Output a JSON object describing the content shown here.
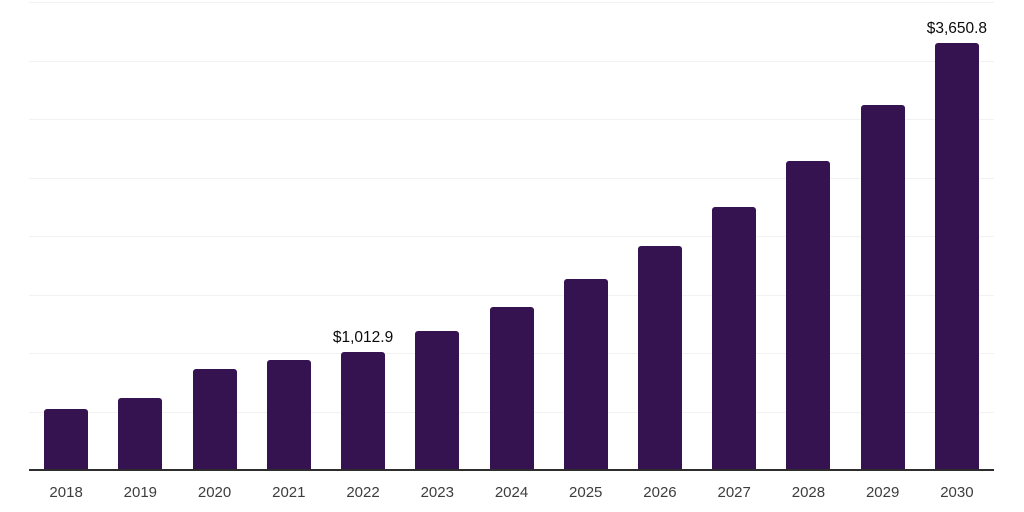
{
  "chart_data": {
    "type": "bar",
    "title": "",
    "xlabel": "",
    "ylabel": "",
    "categories": [
      "2018",
      "2019",
      "2020",
      "2021",
      "2022",
      "2023",
      "2024",
      "2025",
      "2026",
      "2027",
      "2028",
      "2029",
      "2030"
    ],
    "values": [
      520,
      614,
      860,
      939,
      1012.9,
      1190,
      1396,
      1633,
      1912,
      2245,
      2645,
      3121,
      3650.8
    ],
    "ylim": [
      0,
      4000
    ],
    "grid_step": 500,
    "grid": true,
    "legend": false,
    "data_labels": [
      {
        "category": "2022",
        "text": "$1,012.9"
      },
      {
        "category": "2030",
        "text": "$3,650.8"
      }
    ]
  },
  "style": {
    "background": "#ffffff",
    "bar_color": "#351250",
    "grid_color": "#f2f2f2",
    "axis_color": "#2d2d2d",
    "tick_label_color": "#3d3d3d",
    "data_label_color": "#0a0a0a"
  }
}
